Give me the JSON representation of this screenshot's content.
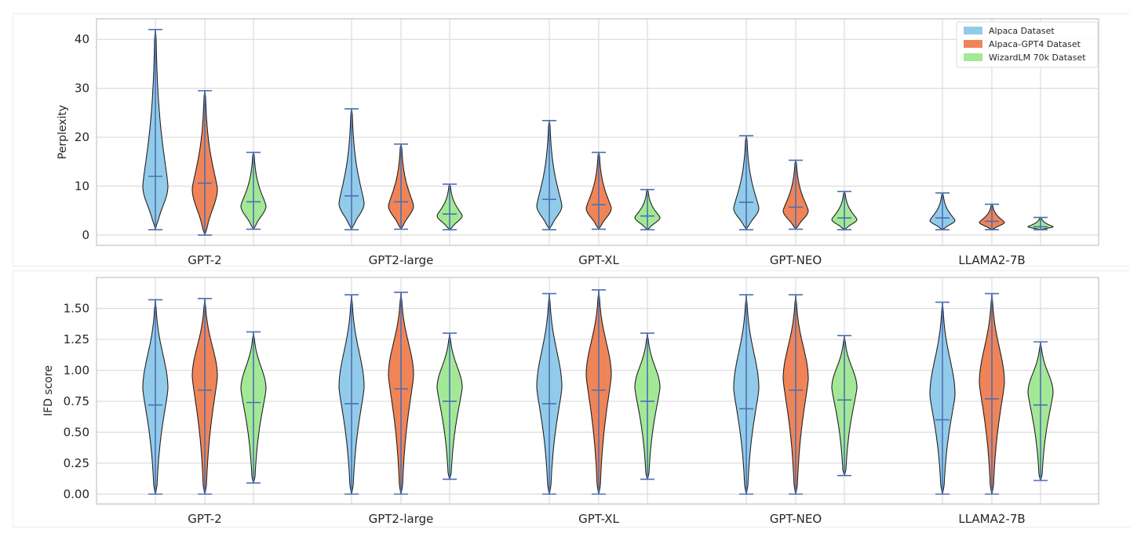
{
  "colors": {
    "Alpaca Dataset": "#92cbea",
    "Alpaca-GPT4 Dataset": "#ef8459",
    "WizardLM 70k Dataset": "#a3e897",
    "stats_line": "#4c6fb0",
    "grid": "#dcdcdc"
  },
  "legend": {
    "position": "top-right",
    "entries": [
      "Alpaca Dataset",
      "Alpaca-GPT4 Dataset",
      "WizardLM 70k Dataset"
    ]
  },
  "chart_data": [
    {
      "type": "violin",
      "ylabel": "Perplexity",
      "xlabel": "",
      "ylim": [
        -2.1,
        44.2
      ],
      "yticks": [
        "0",
        "10",
        "20",
        "30",
        "40"
      ],
      "ytick_values": [
        0,
        10,
        20,
        30,
        40
      ],
      "grid": true,
      "categories": [
        "GPT-2",
        "GPT2-large",
        "GPT-XL",
        "GPT-NEO",
        "LLAMA2-7B"
      ],
      "series": [
        {
          "name": "Alpaca Dataset",
          "values": [
            {
              "min": 1.1,
              "center": 12.0,
              "max": 42.0,
              "peak": 10.0
            },
            {
              "min": 1.1,
              "center": 8.0,
              "max": 25.8,
              "peak": 6.5
            },
            {
              "min": 1.1,
              "center": 7.3,
              "max": 23.4,
              "peak": 6.0
            },
            {
              "min": 1.1,
              "center": 6.7,
              "max": 20.3,
              "peak": 5.5
            },
            {
              "min": 1.1,
              "center": 3.5,
              "max": 8.6,
              "peak": 3.0
            }
          ]
        },
        {
          "name": "Alpaca-GPT4 Dataset",
          "values": [
            {
              "min": 0.0,
              "center": 10.6,
              "max": 29.5,
              "peak": 9.5
            },
            {
              "min": 1.2,
              "center": 6.8,
              "max": 18.6,
              "peak": 6.0
            },
            {
              "min": 1.2,
              "center": 6.2,
              "max": 16.9,
              "peak": 5.5
            },
            {
              "min": 1.2,
              "center": 5.7,
              "max": 15.3,
              "peak": 5.0
            },
            {
              "min": 1.1,
              "center": 2.8,
              "max": 6.3,
              "peak": 2.6
            }
          ]
        },
        {
          "name": "WizardLM 70k Dataset",
          "values": [
            {
              "min": 1.2,
              "center": 6.8,
              "max": 16.9,
              "peak": 6.0
            },
            {
              "min": 1.1,
              "center": 4.3,
              "max": 10.4,
              "peak": 4.0
            },
            {
              "min": 1.1,
              "center": 3.9,
              "max": 9.3,
              "peak": 3.6
            },
            {
              "min": 1.1,
              "center": 3.5,
              "max": 8.9,
              "peak": 3.2
            },
            {
              "min": 1.1,
              "center": 1.7,
              "max": 3.6,
              "peak": 1.7
            }
          ]
        }
      ]
    },
    {
      "type": "violin",
      "ylabel": "IFD score",
      "xlabel": "",
      "ylim": [
        -0.08,
        1.75
      ],
      "yticks": [
        "0.00",
        "0.25",
        "0.50",
        "0.75",
        "1.00",
        "1.25",
        "1.50"
      ],
      "ytick_values": [
        0,
        0.25,
        0.5,
        0.75,
        1.0,
        1.25,
        1.5
      ],
      "grid": true,
      "categories": [
        "GPT-2",
        "GPT2-large",
        "GPT-XL",
        "GPT-NEO",
        "LLAMA2-7B"
      ],
      "series": [
        {
          "name": "Alpaca Dataset",
          "values": [
            {
              "min": 0.0,
              "center": 0.72,
              "max": 1.57,
              "peak": 0.85
            },
            {
              "min": 0.0,
              "center": 0.73,
              "max": 1.61,
              "peak": 0.86
            },
            {
              "min": 0.0,
              "center": 0.73,
              "max": 1.62,
              "peak": 0.86
            },
            {
              "min": 0.0,
              "center": 0.69,
              "max": 1.61,
              "peak": 0.85
            },
            {
              "min": 0.0,
              "center": 0.6,
              "max": 1.55,
              "peak": 0.8
            }
          ]
        },
        {
          "name": "Alpaca-GPT4 Dataset",
          "values": [
            {
              "min": 0.0,
              "center": 0.84,
              "max": 1.58,
              "peak": 0.95
            },
            {
              "min": 0.0,
              "center": 0.85,
              "max": 1.63,
              "peak": 0.96
            },
            {
              "min": 0.0,
              "center": 0.84,
              "max": 1.65,
              "peak": 0.96
            },
            {
              "min": 0.0,
              "center": 0.84,
              "max": 1.61,
              "peak": 0.93
            },
            {
              "min": 0.0,
              "center": 0.77,
              "max": 1.62,
              "peak": 0.9
            }
          ]
        },
        {
          "name": "WizardLM 70k Dataset",
          "values": [
            {
              "min": 0.09,
              "center": 0.74,
              "max": 1.31,
              "peak": 0.85
            },
            {
              "min": 0.12,
              "center": 0.75,
              "max": 1.3,
              "peak": 0.86
            },
            {
              "min": 0.12,
              "center": 0.75,
              "max": 1.3,
              "peak": 0.86
            },
            {
              "min": 0.15,
              "center": 0.76,
              "max": 1.28,
              "peak": 0.86
            },
            {
              "min": 0.11,
              "center": 0.72,
              "max": 1.23,
              "peak": 0.82
            }
          ]
        }
      ]
    }
  ]
}
